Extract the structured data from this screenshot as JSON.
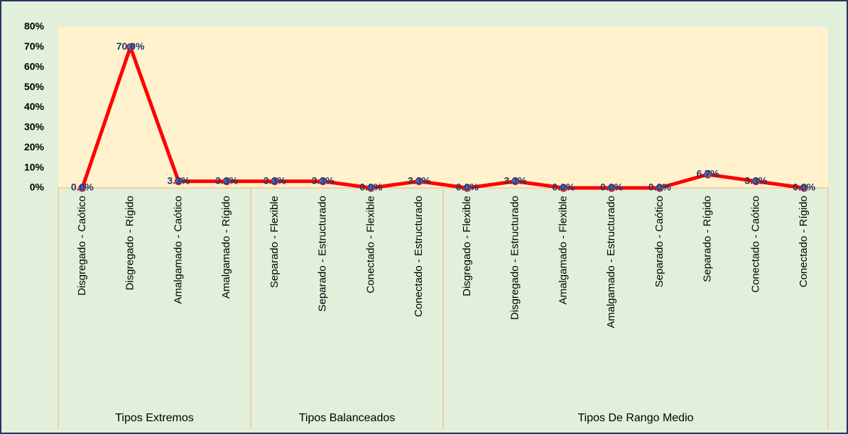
{
  "chart_data": {
    "type": "line",
    "groups": [
      {
        "name": "Tipos Extremos",
        "categories": [
          "Disgregado - Caótico",
          "Disgregado - Rígido",
          "Amalgamado - Caótico",
          "Amalgamado - Rígido"
        ]
      },
      {
        "name": "Tipos Balanceados",
        "categories": [
          "Separado - Flexible",
          "Separado - Estructurado",
          "Conectado - Flexible",
          "Conectado - Estructurado"
        ]
      },
      {
        "name": "Tipos De Rango Medio",
        "categories": [
          "Disgregado - Flexible",
          "Disgregado - Estructurado",
          "Amalgamado - Flexible",
          "Amalgamado - Estructurado",
          "Separado - Caótico",
          "Separado - Rígido",
          "Conectado - Caótico",
          "Conectado - Rígido"
        ]
      }
    ],
    "values": [
      0,
      70,
      3.3,
      3.3,
      3.3,
      3.3,
      0,
      3.3,
      0,
      3.3,
      0,
      0,
      0,
      6.7,
      3.3,
      0
    ],
    "value_labels": [
      "0.0%",
      "70.0%",
      "3.3%",
      "3.3%",
      "3.3%",
      "3.3%",
      "0.0%",
      "3.3%",
      "0.0%",
      "3.3%",
      "0.0%",
      "0.0%",
      "0.0%",
      "6.7%",
      "3.3%",
      "0.0%"
    ],
    "color": "#ff0000",
    "marker_color": "#4472c4",
    "ylim": [
      0,
      80
    ],
    "yticks": [
      {
        "value": 0,
        "label": "0%"
      },
      {
        "value": 10,
        "label": "10%"
      },
      {
        "value": 20,
        "label": "20%"
      },
      {
        "value": 30,
        "label": "30%"
      },
      {
        "value": 40,
        "label": "40%"
      },
      {
        "value": 50,
        "label": "50%"
      },
      {
        "value": 60,
        "label": "60%"
      },
      {
        "value": 70,
        "label": "70%"
      },
      {
        "value": 80,
        "label": "80%"
      }
    ],
    "grid": false
  }
}
